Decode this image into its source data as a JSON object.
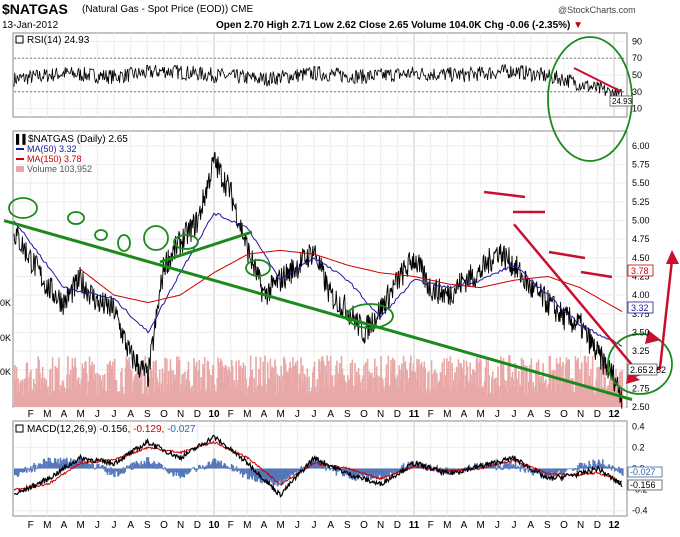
{
  "header": {
    "symbol": "$NATGAS",
    "description": "(Natural Gas - Spot Price (EOD))  CME",
    "brand": "@StockCharts.com",
    "date": "13-Jan-2012",
    "ohlc": "Open 2.70  High 2.71  Low 2.62  Close 2.65  Volume 104.0K  Chg -0.06 (-2.35%)",
    "chg_arrow": "▼"
  },
  "colors": {
    "price": "#000000",
    "ma50": "#1a1aa0",
    "ma150": "#cc0000",
    "volume": "#e8a8a8",
    "trend_green": "#1b8a1b",
    "annotation_red": "#c8102e",
    "macd_hist": "#5577bb"
  },
  "chart_data": [
    {
      "type": "line",
      "panel": "rsi",
      "title": "RSI(14) 24.93",
      "legend": "RSI(14) 24.93",
      "ylim": [
        0,
        100
      ],
      "yticks": [
        "90",
        "70",
        "50",
        "30",
        "10"
      ],
      "reference_lines": [
        30,
        70
      ],
      "last_value_label": "24.93",
      "x": [
        2009.0,
        2009.25,
        2009.5,
        2009.75,
        2010.0,
        2010.25,
        2010.5,
        2010.75,
        2011.0,
        2011.25,
        2011.5,
        2011.75,
        2012.04
      ],
      "values": [
        45,
        52,
        48,
        55,
        50,
        45,
        52,
        48,
        52,
        50,
        55,
        45,
        25
      ]
    },
    {
      "type": "line",
      "panel": "price",
      "title": "$NATGAS (Daily) 2.65",
      "legend": [
        {
          "key": "price",
          "label": "$NATGAS (Daily) 2.65"
        },
        {
          "key": "ma50",
          "label": "MA(50) 3.32"
        },
        {
          "key": "ma150",
          "label": "MA(150) 3.78"
        },
        {
          "key": "volume",
          "label": "Volume 103,952"
        }
      ],
      "ylim": [
        2.5,
        6.2
      ],
      "yticks": [
        "6.00",
        "5.75",
        "5.50",
        "5.25",
        "5.00",
        "4.75",
        "4.50",
        "4.25",
        "4.00",
        "3.75",
        "3.50",
        "3.25",
        "3.00",
        "2.75",
        "2.50"
      ],
      "value_boxes": {
        "ma150": "3.78",
        "ma50": "3.32",
        "price": "2.65",
        "price_b": "2.62"
      },
      "volume_axis_labels": [
        "0K",
        "0K",
        "0K"
      ],
      "series": [
        {
          "name": "$NATGAS",
          "x": [
            2009.0,
            2009.08,
            2009.17,
            2009.25,
            2009.33,
            2009.42,
            2009.5,
            2009.58,
            2009.67,
            2009.75,
            2009.83,
            2009.92,
            2010.0,
            2010.08,
            2010.17,
            2010.25,
            2010.33,
            2010.42,
            2010.5,
            2010.58,
            2010.67,
            2010.75,
            2010.83,
            2010.92,
            2011.0,
            2011.08,
            2011.17,
            2011.25,
            2011.33,
            2011.42,
            2011.5,
            2011.58,
            2011.67,
            2011.75,
            2011.83,
            2011.92,
            2012.0,
            2012.04
          ],
          "values": [
            4.85,
            4.5,
            4.1,
            3.9,
            4.2,
            3.9,
            3.8,
            3.2,
            2.9,
            4.4,
            4.7,
            5.0,
            5.8,
            5.4,
            4.6,
            4.0,
            4.2,
            4.4,
            4.6,
            4.0,
            3.8,
            3.5,
            3.8,
            4.2,
            4.5,
            4.1,
            4.0,
            4.2,
            4.3,
            4.6,
            4.4,
            4.1,
            3.9,
            3.7,
            3.6,
            3.2,
            2.9,
            2.65
          ]
        },
        {
          "name": "MA(50) 3.32",
          "x": [
            2009.0,
            2009.25,
            2009.5,
            2009.67,
            2009.83,
            2010.0,
            2010.17,
            2010.33,
            2010.5,
            2010.67,
            2010.83,
            2011.0,
            2011.17,
            2011.33,
            2011.5,
            2011.67,
            2011.83,
            2012.04
          ],
          "values": [
            5.0,
            4.1,
            3.95,
            3.5,
            4.3,
            5.1,
            4.9,
            4.2,
            4.5,
            4.2,
            3.7,
            4.2,
            4.1,
            4.2,
            4.4,
            4.0,
            3.6,
            3.32
          ]
        },
        {
          "name": "MA(150) 3.78",
          "x": [
            2009.33,
            2009.5,
            2009.67,
            2009.83,
            2010.0,
            2010.17,
            2010.33,
            2010.5,
            2010.67,
            2010.83,
            2011.0,
            2011.17,
            2011.33,
            2011.5,
            2011.67,
            2011.83,
            2012.04
          ],
          "values": [
            4.35,
            4.0,
            3.9,
            4.0,
            4.3,
            4.55,
            4.6,
            4.55,
            4.4,
            4.3,
            4.25,
            4.15,
            4.1,
            4.2,
            4.25,
            4.1,
            3.78
          ]
        }
      ]
    },
    {
      "type": "line",
      "panel": "macd",
      "title": "MACD(12,26,9) -0.156, -0.129, -0.027",
      "legend": {
        "name": "MACD(12,26,9)",
        "macd": "-0.156,",
        "signal": "-0.129,",
        "hist": "-0.027"
      },
      "ylim": [
        -0.45,
        0.45
      ],
      "yticks": [
        "0.4",
        "0.2",
        "0.0",
        "-0.2",
        "-0.4"
      ],
      "value_boxes": {
        "hist": "-0.027",
        "macd": "-0.156"
      },
      "x": [
        2009.0,
        2009.17,
        2009.33,
        2009.5,
        2009.67,
        2009.83,
        2010.0,
        2010.17,
        2010.33,
        2010.5,
        2010.67,
        2010.83,
        2011.0,
        2011.17,
        2011.33,
        2011.5,
        2011.67,
        2011.83,
        2011.92,
        2012.04
      ],
      "series": [
        {
          "name": "MACD",
          "values": [
            -0.25,
            -0.1,
            0.1,
            0.05,
            0.25,
            0.1,
            0.3,
            0.05,
            -0.25,
            0.1,
            -0.05,
            -0.15,
            0.05,
            -0.05,
            0.02,
            0.1,
            -0.1,
            -0.05,
            0.0,
            -0.156
          ]
        },
        {
          "name": "Signal",
          "values": [
            -0.2,
            -0.15,
            0.05,
            0.08,
            0.2,
            0.15,
            0.25,
            0.1,
            -0.15,
            0.05,
            0.0,
            -0.1,
            0.02,
            -0.02,
            0.0,
            0.08,
            -0.05,
            -0.06,
            -0.04,
            -0.129
          ]
        }
      ]
    }
  ],
  "x_axis_labels": {
    "months": [
      "F",
      "M",
      "A",
      "M",
      "J",
      "J",
      "A",
      "S",
      "O",
      "N",
      "D",
      "10",
      "F",
      "M",
      "A",
      "M",
      "J",
      "J",
      "A",
      "S",
      "O",
      "N",
      "D",
      "11",
      "F",
      "M",
      "A",
      "M",
      "J",
      "J",
      "A",
      "S",
      "O",
      "N",
      "D",
      "12"
    ],
    "major": [
      "10",
      "11",
      "12"
    ]
  },
  "annotations": {
    "green_trendline": {
      "from": [
        2009.0,
        5.0
      ],
      "to": [
        2012.04,
        2.6
      ],
      "label": ""
    },
    "red_downtrend": {
      "from": [
        2011.5,
        4.95
      ],
      "to": [
        2012.04,
        3.0
      ],
      "label": ""
    }
  }
}
